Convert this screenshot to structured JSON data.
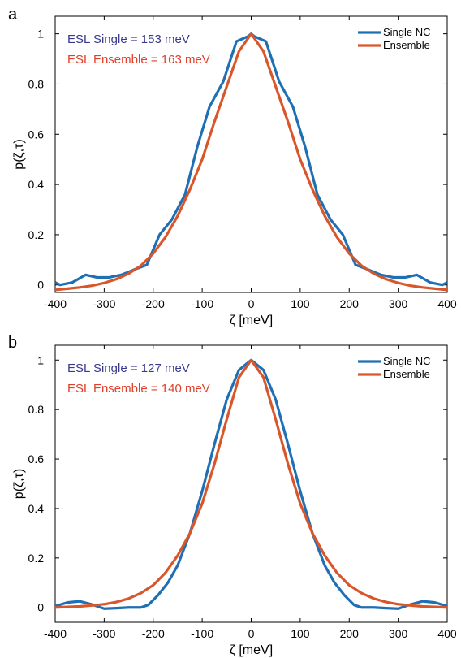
{
  "chart_data": [
    {
      "type": "line",
      "panel": "a",
      "xlabel": "ζ [meV]",
      "ylabel": "p(ζ,τ)",
      "xlim": [
        -400,
        400
      ],
      "ylim": [
        -0.03,
        1.07
      ],
      "xticks": [
        -400,
        -300,
        -200,
        -100,
        0,
        100,
        200,
        300,
        400
      ],
      "yticks": [
        0,
        0.2,
        0.4,
        0.6,
        0.8,
        1
      ],
      "ytick_labels": [
        "0",
        "0.2",
        "0.4",
        "0.6",
        "0.8",
        "1"
      ],
      "grid": false,
      "legend_position": "top-right",
      "annotations": [
        {
          "text": "ESL Single = 153 meV",
          "color": "#3a3a8c"
        },
        {
          "text": "ESL Ensemble = 163 meV",
          "color": "#e0402a"
        }
      ],
      "series": [
        {
          "name": "Single NC",
          "color": "#1f6fb5",
          "x": [
            -400,
            -390,
            -365,
            -338,
            -315,
            -290,
            -265,
            -240,
            -213,
            -187,
            -162,
            -135,
            -110,
            -85,
            -57,
            -30,
            -6,
            0,
            6,
            30,
            57,
            85,
            110,
            135,
            162,
            187,
            213,
            240,
            265,
            290,
            315,
            338,
            365,
            390,
            400
          ],
          "y": [
            0.01,
            0.0,
            0.01,
            0.04,
            0.03,
            0.03,
            0.04,
            0.06,
            0.08,
            0.2,
            0.26,
            0.36,
            0.55,
            0.71,
            0.81,
            0.97,
            0.99,
            1.0,
            0.99,
            0.97,
            0.81,
            0.71,
            0.55,
            0.36,
            0.26,
            0.2,
            0.08,
            0.06,
            0.04,
            0.03,
            0.03,
            0.04,
            0.01,
            0.0,
            0.01
          ]
        },
        {
          "name": "Ensemble",
          "color": "#d9562b",
          "x": [
            -400,
            -375,
            -350,
            -325,
            -300,
            -275,
            -250,
            -225,
            -200,
            -175,
            -150,
            -125,
            -100,
            -75,
            -50,
            -25,
            0,
            25,
            50,
            75,
            100,
            125,
            150,
            175,
            200,
            225,
            250,
            275,
            300,
            325,
            350,
            375,
            400
          ],
          "y": [
            -0.02,
            -0.015,
            -0.01,
            -0.003,
            0.008,
            0.023,
            0.045,
            0.077,
            0.125,
            0.19,
            0.275,
            0.38,
            0.5,
            0.65,
            0.79,
            0.93,
            1.0,
            0.93,
            0.79,
            0.65,
            0.5,
            0.38,
            0.275,
            0.19,
            0.125,
            0.077,
            0.045,
            0.023,
            0.008,
            -0.003,
            -0.01,
            -0.015,
            -0.02
          ]
        }
      ]
    },
    {
      "type": "line",
      "panel": "b",
      "xlabel": "ζ [meV]",
      "ylabel": "p(ζ,τ)",
      "xlim": [
        -400,
        400
      ],
      "ylim": [
        -0.06,
        1.06
      ],
      "xticks": [
        -400,
        -300,
        -200,
        -100,
        0,
        100,
        200,
        300,
        400
      ],
      "yticks": [
        0,
        0.2,
        0.4,
        0.6,
        0.8,
        1
      ],
      "ytick_labels": [
        "0",
        "0.2",
        "0.4",
        "0.6",
        "0.8",
        "1"
      ],
      "grid": false,
      "legend_position": "top-right",
      "annotations": [
        {
          "text": "ESL Single = 127 meV",
          "color": "#3a3a8c"
        },
        {
          "text": "ESL Ensemble = 140 meV",
          "color": "#e0402a"
        }
      ],
      "series": [
        {
          "name": "Single NC",
          "color": "#1f6fb5",
          "x": [
            -400,
            -375,
            -350,
            -325,
            -300,
            -275,
            -250,
            -225,
            -210,
            -190,
            -170,
            -150,
            -125,
            -100,
            -75,
            -50,
            -25,
            0,
            25,
            50,
            75,
            100,
            125,
            150,
            170,
            190,
            210,
            225,
            250,
            275,
            300,
            325,
            350,
            375,
            400
          ],
          "y": [
            0.005,
            0.02,
            0.025,
            0.012,
            -0.005,
            -0.003,
            0.0,
            0.0,
            0.01,
            0.05,
            0.1,
            0.17,
            0.3,
            0.47,
            0.66,
            0.84,
            0.96,
            1.0,
            0.96,
            0.84,
            0.66,
            0.47,
            0.3,
            0.17,
            0.1,
            0.05,
            0.01,
            0.0,
            0.0,
            -0.003,
            -0.005,
            0.012,
            0.025,
            0.02,
            0.005
          ]
        },
        {
          "name": "Ensemble",
          "color": "#d9562b",
          "x": [
            -400,
            -375,
            -350,
            -325,
            -300,
            -275,
            -250,
            -225,
            -200,
            -175,
            -150,
            -125,
            -100,
            -75,
            -50,
            -25,
            0,
            25,
            50,
            75,
            100,
            125,
            150,
            175,
            200,
            225,
            250,
            275,
            300,
            325,
            350,
            375,
            400
          ],
          "y": [
            0.0,
            0.002,
            0.004,
            0.008,
            0.013,
            0.022,
            0.036,
            0.058,
            0.09,
            0.14,
            0.21,
            0.3,
            0.42,
            0.58,
            0.76,
            0.93,
            1.0,
            0.93,
            0.76,
            0.58,
            0.42,
            0.3,
            0.21,
            0.14,
            0.09,
            0.058,
            0.036,
            0.022,
            0.013,
            0.008,
            0.004,
            0.002,
            0.0
          ]
        }
      ]
    }
  ]
}
